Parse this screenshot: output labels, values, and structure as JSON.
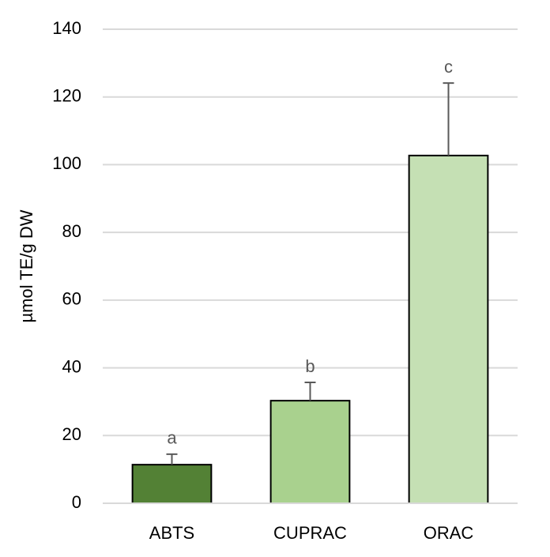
{
  "chart_data": {
    "type": "bar",
    "ylabel": "µmol TE/g DW",
    "categories": [
      "ABTS",
      "CUPRAC",
      "ORAC"
    ],
    "values": [
      11.4,
      30.3,
      102.7
    ],
    "errors": [
      3.1,
      5.4,
      21.4
    ],
    "colors": [
      "#538135",
      "#a9d18e",
      "#c5e0b4"
    ],
    "annotations": [
      "a",
      "b",
      "c"
    ],
    "ylim": [
      0,
      140
    ],
    "yticks": [
      0,
      20,
      40,
      60,
      80,
      100,
      120,
      140
    ],
    "grid": true
  }
}
